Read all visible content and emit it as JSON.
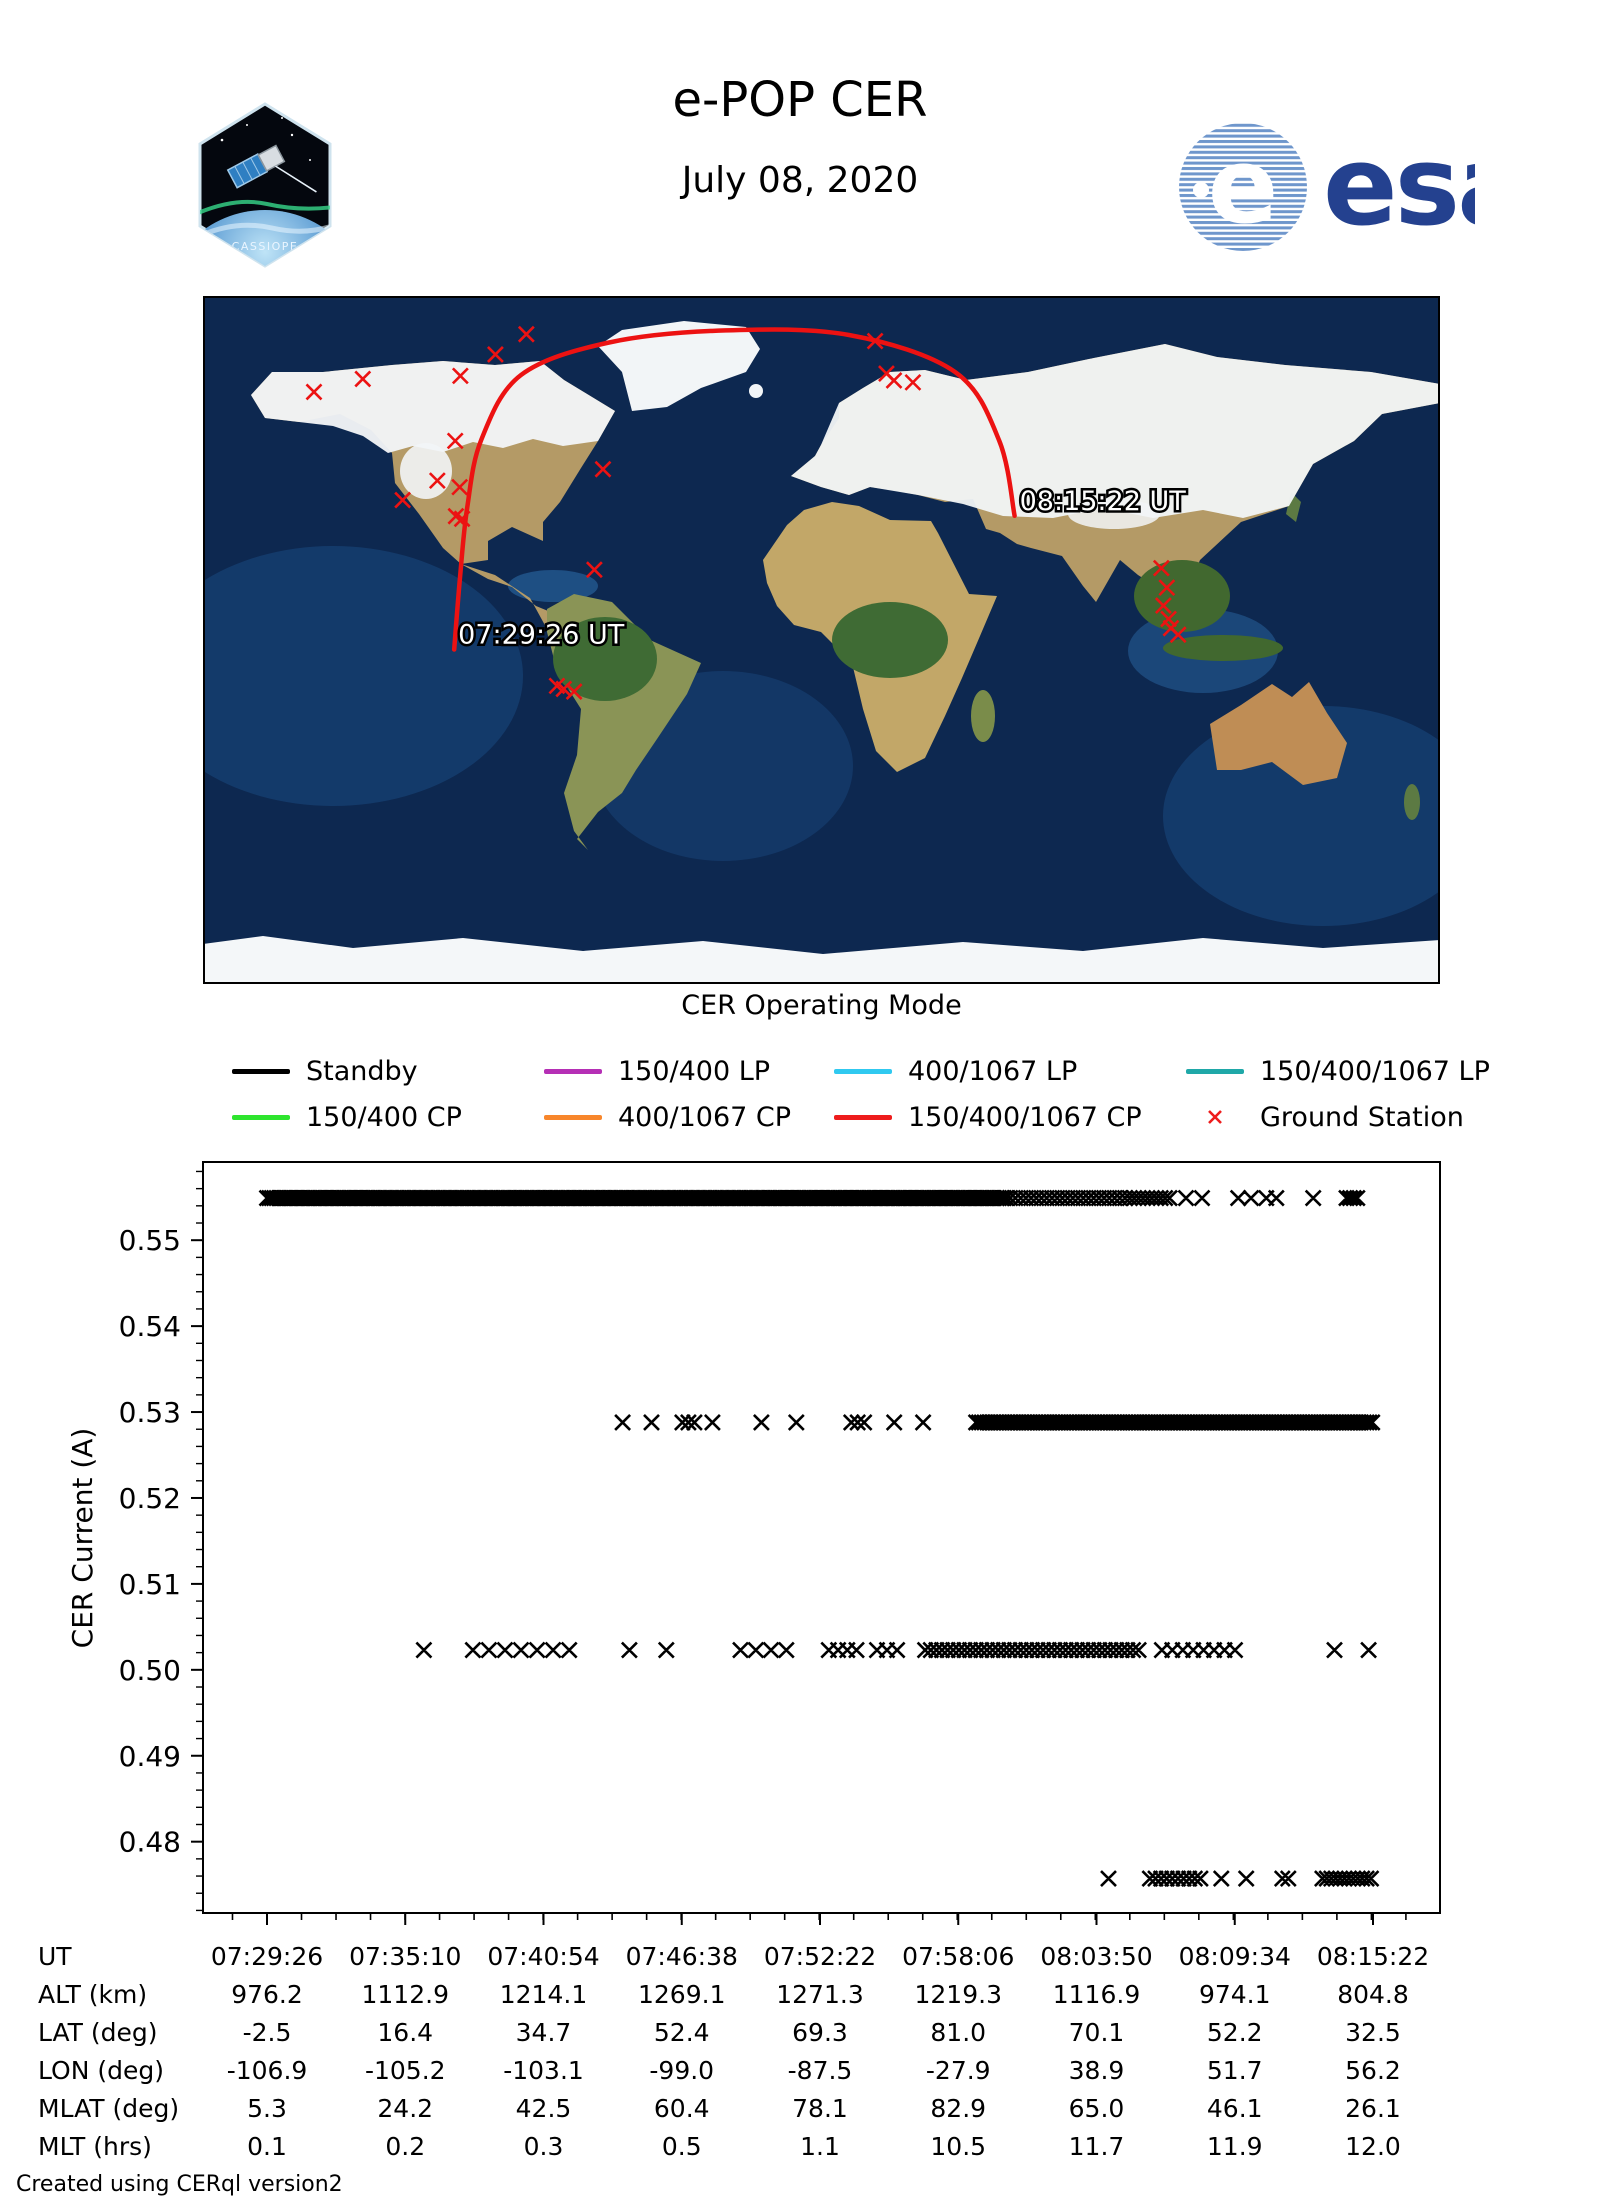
{
  "header": {
    "title": "e-POP CER",
    "date": "July 08, 2020"
  },
  "logos": {
    "cassiope_text": "CASSIOPE",
    "esa_text": "esa",
    "esa_blue": "#24418f",
    "esa_stripe_blue": "#6e96cc"
  },
  "map": {
    "start_label": "07:29:26 UT",
    "end_label": "08:15:22 UT",
    "track_color": "#ec1212",
    "station_color": "#ec1212",
    "track_points_lonlat": [
      [
        -106.9,
        -2.5
      ],
      [
        -105.2,
        16.4
      ],
      [
        -103.1,
        34.7
      ],
      [
        -99.0,
        52.4
      ],
      [
        -87.5,
        69.3
      ],
      [
        -62.0,
        77.8
      ],
      [
        -27.9,
        81.0
      ],
      [
        8.0,
        79.8
      ],
      [
        38.9,
        70.1
      ],
      [
        51.7,
        52.2
      ],
      [
        56.2,
        32.5
      ]
    ],
    "stations_lonlat": [
      [
        -85.9,
        80.0
      ],
      [
        -94.9,
        74.7
      ],
      [
        -105.1,
        69.1
      ],
      [
        -133.5,
        68.3
      ],
      [
        -147.7,
        64.9
      ],
      [
        -106.6,
        52.1
      ],
      [
        -111.8,
        41.7
      ],
      [
        -121.9,
        36.6
      ],
      [
        -105.3,
        40.0
      ],
      [
        -106.4,
        32.4
      ],
      [
        -104.6,
        31.7
      ],
      [
        -63.6,
        44.7
      ],
      [
        -66.1,
        18.4
      ],
      [
        -77.0,
        -12.0
      ],
      [
        -75.0,
        -12.8
      ],
      [
        -72.0,
        -13.5
      ],
      [
        15.6,
        78.2
      ],
      [
        18.9,
        69.7
      ],
      [
        21.1,
        67.9
      ],
      [
        26.6,
        67.4
      ],
      [
        98.9,
        18.8
      ],
      [
        100.5,
        13.7
      ],
      [
        99.5,
        9.0
      ],
      [
        101.0,
        5.5
      ],
      [
        101.7,
        3.1
      ],
      [
        103.8,
        1.4
      ]
    ]
  },
  "legend": {
    "title": "CER Operating Mode",
    "items": [
      {
        "label": "Standby",
        "color": "#000000",
        "swatch": "line"
      },
      {
        "label": "150/400 LP",
        "color": "#b52fb5",
        "swatch": "line"
      },
      {
        "label": "400/1067 LP",
        "color": "#30c9f0",
        "swatch": "line"
      },
      {
        "label": "150/400/1067 LP",
        "color": "#1fa8a8",
        "swatch": "line"
      },
      {
        "label": "150/400 CP",
        "color": "#2ee52e",
        "swatch": "line"
      },
      {
        "label": "400/1067 CP",
        "color": "#f8862b",
        "swatch": "line"
      },
      {
        "label": "150/400/1067 CP",
        "color": "#ee1c1c",
        "swatch": "line"
      },
      {
        "label": "Ground Station",
        "color": "#ee1c1c",
        "swatch": "x"
      }
    ]
  },
  "chart_data": {
    "type": "scatter",
    "marker": "x",
    "marker_color": "#000000",
    "title": "",
    "xlabel": "UT",
    "ylabel": "CER Current (A)",
    "x_axis": {
      "start": "07:29:26",
      "end": "08:15:22",
      "duration_s": 2756,
      "tick_labels": [
        "07:29:26",
        "07:35:10",
        "07:40:54",
        "07:46:38",
        "07:52:22",
        "07:58:06",
        "08:03:50",
        "08:09:34",
        "08:15:22"
      ],
      "minor_tick_s": 86
    },
    "y_axis": {
      "ticks": [
        0.48,
        0.49,
        0.5,
        0.51,
        0.52,
        0.53,
        0.54,
        0.55
      ],
      "minor_step": 0.002,
      "lim": [
        0.4717,
        0.5591
      ]
    },
    "segments_format": "[start_s,end_s,step_s] or [t_s] single point, seconds after 07:29:26 UT",
    "bands": [
      {
        "current_a": 0.5549,
        "segments": [
          [
            0,
            1845,
            6
          ],
          [
            1852,
            2140,
            13
          ],
          [
            2150,
            2252,
            11
          ],
          [
            2290
          ],
          [
            2330
          ],
          [
            2420
          ],
          [
            2452
          ],
          [
            2490
          ],
          [
            2515
          ],
          [
            2607
          ],
          [
            2690,
            2725,
            9
          ]
        ]
      },
      {
        "current_a": 0.5288,
        "segments": [
          [
            886
          ],
          [
            958
          ],
          [
            1035,
            1065,
            15
          ],
          [
            1110
          ],
          [
            1232
          ],
          [
            1319
          ],
          [
            1456,
            1488,
            16
          ],
          [
            1563
          ],
          [
            1635
          ],
          [
            1767,
            2756,
            7
          ]
        ]
      },
      {
        "current_a": 0.5023,
        "segments": [
          [
            391
          ],
          [
            513,
            790,
            40
          ],
          [
            903
          ],
          [
            995
          ],
          [
            1180,
            1330,
            38
          ],
          [
            1400,
            1470,
            23
          ],
          [
            1520,
            1570,
            25
          ],
          [
            1640,
            2180,
            14
          ],
          [
            2230,
            2430,
            26
          ],
          [
            2660
          ],
          [
            2745
          ]
        ]
      },
      {
        "current_a": 0.4757,
        "segments": [
          [
            2097
          ],
          [
            2200,
            2330,
            14
          ],
          [
            2378
          ],
          [
            2440
          ],
          [
            2530,
            2545,
            15
          ],
          [
            2630,
            2756,
            11
          ]
        ]
      }
    ]
  },
  "table": {
    "rows": [
      {
        "label": "UT",
        "values": [
          "07:29:26",
          "07:35:10",
          "07:40:54",
          "07:46:38",
          "07:52:22",
          "07:58:06",
          "08:03:50",
          "08:09:34",
          "08:15:22"
        ]
      },
      {
        "label": "ALT (km)",
        "values": [
          "976.2",
          "1112.9",
          "1214.1",
          "1269.1",
          "1271.3",
          "1219.3",
          "1116.9",
          "974.1",
          "804.8"
        ]
      },
      {
        "label": "LAT (deg)",
        "values": [
          "-2.5",
          "16.4",
          "34.7",
          "52.4",
          "69.3",
          "81.0",
          "70.1",
          "52.2",
          "32.5"
        ]
      },
      {
        "label": "LON (deg)",
        "values": [
          "-106.9",
          "-105.2",
          "-103.1",
          "-99.0",
          "-87.5",
          "-27.9",
          "38.9",
          "51.7",
          "56.2"
        ]
      },
      {
        "label": "MLAT (deg)",
        "values": [
          "5.3",
          "24.2",
          "42.5",
          "60.4",
          "78.1",
          "82.9",
          "65.0",
          "46.1",
          "26.1"
        ]
      },
      {
        "label": "MLT (hrs)",
        "values": [
          "0.1",
          "0.2",
          "0.3",
          "0.5",
          "1.1",
          "10.5",
          "11.7",
          "11.9",
          "12.0"
        ]
      }
    ]
  },
  "footer": {
    "credit": "Created using CERql version2"
  }
}
